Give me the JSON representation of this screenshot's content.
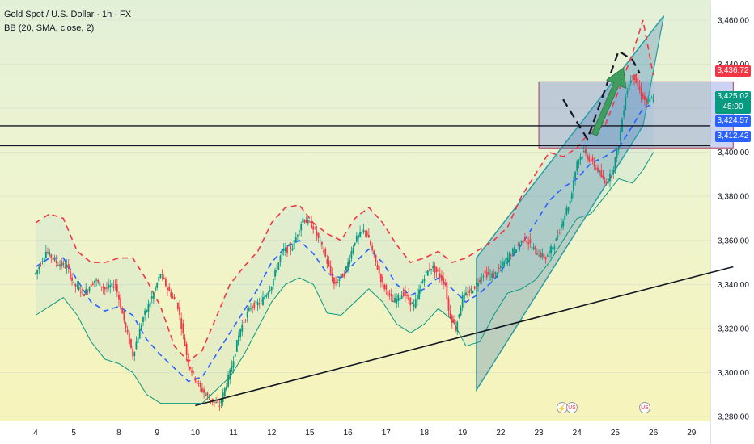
{
  "legend": {
    "title": "Gold Spot / U.S. Dollar · 1h · FX",
    "indicator": "BB (20, SMA, close, 2)"
  },
  "price_tags": {
    "high": {
      "value": "3,436.72",
      "color": "#f23645"
    },
    "last": {
      "value": "3,425.02",
      "countdown": "45:00",
      "color": "#089981"
    },
    "mid": {
      "value": "3,424.57",
      "color": "#2962ff"
    },
    "low": {
      "value": "3,412.42",
      "color": "#2962ff"
    }
  },
  "events": [
    {
      "icon": "lightning-icon",
      "symbol": "⚡"
    },
    {
      "icon": "us-flag-icon",
      "symbol": "US"
    },
    {
      "icon": "us-flag-icon",
      "symbol": "US"
    }
  ],
  "chart_data": {
    "type": "candlestick",
    "x_ticks": [
      "4",
      "5",
      "8",
      "9",
      "10",
      "11",
      "12",
      "15",
      "16",
      "17",
      "18",
      "19",
      "22",
      "23",
      "24",
      "25",
      "26",
      "29"
    ],
    "x_tick_index": [
      0,
      11,
      24,
      35,
      46,
      57,
      68,
      79,
      90,
      101,
      112,
      123,
      134,
      145,
      156,
      167,
      178,
      189
    ],
    "y_ticks": [
      3280,
      3300,
      3320,
      3340,
      3360,
      3380,
      3400,
      3420,
      3440,
      3460
    ],
    "y_tick_labels": [
      "3,280.00",
      "3,300.00",
      "3,320.00",
      "3,340.00",
      "3,360.00",
      "3,380.00",
      "3,400.00",
      "3,420.00",
      "3,440.00",
      "3,460.00"
    ],
    "ylim": [
      3275,
      3465
    ],
    "close_path": [
      [
        0,
        3345
      ],
      [
        3,
        3355
      ],
      [
        6,
        3350
      ],
      [
        9,
        3348
      ],
      [
        11,
        3340
      ],
      [
        14,
        3336
      ],
      [
        17,
        3342
      ],
      [
        20,
        3338
      ],
      [
        23,
        3340
      ],
      [
        26,
        3320
      ],
      [
        28,
        3308
      ],
      [
        31,
        3325
      ],
      [
        34,
        3336
      ],
      [
        36,
        3345
      ],
      [
        38,
        3338
      ],
      [
        41,
        3330
      ],
      [
        44,
        3304
      ],
      [
        47,
        3294
      ],
      [
        50,
        3288
      ],
      [
        53,
        3285
      ],
      [
        56,
        3300
      ],
      [
        59,
        3320
      ],
      [
        62,
        3330
      ],
      [
        65,
        3332
      ],
      [
        68,
        3340
      ],
      [
        71,
        3355
      ],
      [
        74,
        3357
      ],
      [
        77,
        3370
      ],
      [
        80,
        3366
      ],
      [
        83,
        3355
      ],
      [
        86,
        3340
      ],
      [
        89,
        3345
      ],
      [
        92,
        3360
      ],
      [
        95,
        3365
      ],
      [
        97,
        3355
      ],
      [
        100,
        3340
      ],
      [
        103,
        3332
      ],
      [
        106,
        3336
      ],
      [
        109,
        3330
      ],
      [
        112,
        3344
      ],
      [
        114,
        3348
      ],
      [
        116,
        3345
      ],
      [
        118,
        3340
      ],
      [
        119,
        3328
      ],
      [
        121,
        3320
      ],
      [
        123,
        3334
      ],
      [
        126,
        3338
      ],
      [
        129,
        3345
      ],
      [
        132,
        3344
      ],
      [
        135,
        3350
      ],
      [
        138,
        3356
      ],
      [
        141,
        3361
      ],
      [
        144,
        3355
      ],
      [
        147,
        3352
      ],
      [
        150,
        3360
      ],
      [
        152,
        3370
      ],
      [
        154,
        3378
      ],
      [
        156,
        3396
      ],
      [
        158,
        3400
      ],
      [
        160,
        3396
      ],
      [
        162,
        3392
      ],
      [
        164,
        3386
      ],
      [
        166,
        3390
      ],
      [
        168,
        3404
      ],
      [
        170,
        3426
      ],
      [
        172,
        3436
      ],
      [
        174,
        3428
      ],
      [
        176,
        3422
      ],
      [
        178,
        3425
      ]
    ],
    "bb_upper_path": [
      [
        0,
        3368
      ],
      [
        4,
        3372
      ],
      [
        8,
        3370
      ],
      [
        12,
        3355
      ],
      [
        16,
        3350
      ],
      [
        20,
        3350
      ],
      [
        24,
        3352
      ],
      [
        28,
        3352
      ],
      [
        32,
        3342
      ],
      [
        36,
        3330
      ],
      [
        40,
        3312
      ],
      [
        44,
        3305
      ],
      [
        48,
        3310
      ],
      [
        52,
        3325
      ],
      [
        56,
        3340
      ],
      [
        60,
        3348
      ],
      [
        64,
        3355
      ],
      [
        68,
        3368
      ],
      [
        72,
        3375
      ],
      [
        76,
        3376
      ],
      [
        80,
        3368
      ],
      [
        84,
        3363
      ],
      [
        88,
        3360
      ],
      [
        92,
        3370
      ],
      [
        96,
        3375
      ],
      [
        100,
        3368
      ],
      [
        104,
        3358
      ],
      [
        108,
        3350
      ],
      [
        112,
        3352
      ],
      [
        116,
        3355
      ],
      [
        120,
        3350
      ],
      [
        124,
        3352
      ],
      [
        128,
        3356
      ],
      [
        132,
        3360
      ],
      [
        136,
        3366
      ],
      [
        140,
        3380
      ],
      [
        144,
        3390
      ],
      [
        148,
        3400
      ],
      [
        152,
        3398
      ],
      [
        156,
        3402
      ],
      [
        160,
        3410
      ],
      [
        164,
        3412
      ],
      [
        168,
        3428
      ],
      [
        172,
        3445
      ],
      [
        175,
        3460
      ],
      [
        178,
        3435
      ]
    ],
    "bb_basis_path": [
      [
        0,
        3348
      ],
      [
        4,
        3352
      ],
      [
        8,
        3352
      ],
      [
        12,
        3342
      ],
      [
        16,
        3332
      ],
      [
        20,
        3328
      ],
      [
        24,
        3330
      ],
      [
        28,
        3326
      ],
      [
        32,
        3315
      ],
      [
        36,
        3308
      ],
      [
        40,
        3302
      ],
      [
        44,
        3296
      ],
      [
        48,
        3298
      ],
      [
        52,
        3308
      ],
      [
        56,
        3318
      ],
      [
        60,
        3328
      ],
      [
        64,
        3338
      ],
      [
        68,
        3350
      ],
      [
        72,
        3357
      ],
      [
        76,
        3360
      ],
      [
        80,
        3354
      ],
      [
        84,
        3345
      ],
      [
        88,
        3343
      ],
      [
        92,
        3350
      ],
      [
        96,
        3356
      ],
      [
        100,
        3350
      ],
      [
        104,
        3340
      ],
      [
        108,
        3335
      ],
      [
        112,
        3338
      ],
      [
        116,
        3343
      ],
      [
        120,
        3338
      ],
      [
        124,
        3332
      ],
      [
        128,
        3336
      ],
      [
        132,
        3342
      ],
      [
        136,
        3350
      ],
      [
        140,
        3358
      ],
      [
        144,
        3368
      ],
      [
        148,
        3378
      ],
      [
        152,
        3384
      ],
      [
        156,
        3388
      ],
      [
        160,
        3395
      ],
      [
        164,
        3398
      ],
      [
        168,
        3402
      ],
      [
        172,
        3412
      ],
      [
        175,
        3420
      ],
      [
        178,
        3422
      ]
    ],
    "bb_lower_path": [
      [
        0,
        3326
      ],
      [
        4,
        3330
      ],
      [
        8,
        3334
      ],
      [
        12,
        3326
      ],
      [
        16,
        3314
      ],
      [
        20,
        3306
      ],
      [
        24,
        3304
      ],
      [
        28,
        3300
      ],
      [
        32,
        3290
      ],
      [
        36,
        3286
      ],
      [
        40,
        3286
      ],
      [
        44,
        3286
      ],
      [
        48,
        3286
      ],
      [
        52,
        3292
      ],
      [
        56,
        3298
      ],
      [
        60,
        3308
      ],
      [
        64,
        3320
      ],
      [
        68,
        3332
      ],
      [
        72,
        3340
      ],
      [
        76,
        3343
      ],
      [
        80,
        3340
      ],
      [
        84,
        3327
      ],
      [
        88,
        3326
      ],
      [
        92,
        3332
      ],
      [
        96,
        3338
      ],
      [
        100,
        3332
      ],
      [
        104,
        3322
      ],
      [
        108,
        3318
      ],
      [
        112,
        3322
      ],
      [
        116,
        3329
      ],
      [
        120,
        3324
      ],
      [
        124,
        3312
      ],
      [
        128,
        3314
      ],
      [
        132,
        3326
      ],
      [
        136,
        3336
      ],
      [
        140,
        3338
      ],
      [
        144,
        3342
      ],
      [
        148,
        3350
      ],
      [
        152,
        3360
      ],
      [
        156,
        3370
      ],
      [
        160,
        3372
      ],
      [
        164,
        3380
      ],
      [
        168,
        3388
      ],
      [
        172,
        3386
      ],
      [
        175,
        3392
      ],
      [
        178,
        3400
      ]
    ],
    "trendline": [
      [
        46,
        3285
      ],
      [
        201,
        3348
      ]
    ],
    "horizontal_lines": [
      3412,
      3403
    ],
    "resistance_zone": {
      "from_index": 145,
      "to_index": 201,
      "y_top": 3432,
      "y_bottom": 3402
    },
    "channel": {
      "lower": [
        [
          127,
          3292
        ],
        [
          175,
          3412
        ]
      ],
      "upper": [
        [
          127,
          3352
        ],
        [
          181,
          3462
        ]
      ],
      "extend_to_index": 181
    }
  }
}
